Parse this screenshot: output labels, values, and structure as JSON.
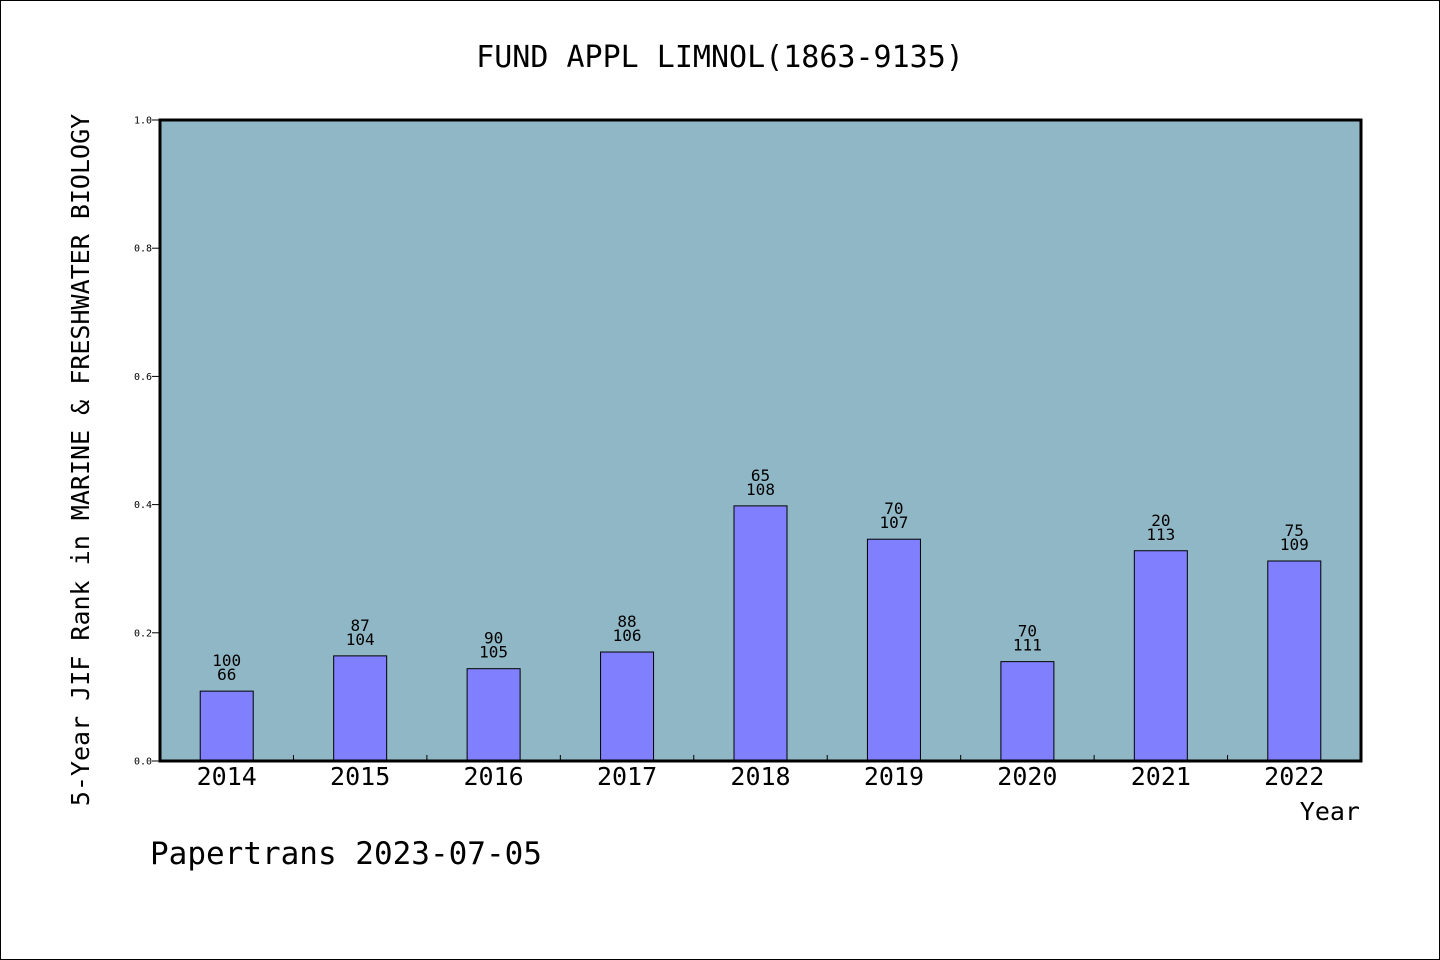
{
  "chart_data": {
    "type": "bar",
    "title": "FUND APPL LIMNOL(1863-9135)",
    "xlabel": "Year",
    "ylabel": "5-Year JIF Rank in MARINE & FRESHWATER BIOLOGY",
    "ylim": [
      0,
      1.0
    ],
    "yticks": [
      "0.0",
      "0.2",
      "0.4",
      "0.6",
      "0.8",
      "1.0"
    ],
    "categories": [
      "2014",
      "2015",
      "2016",
      "2017",
      "2018",
      "2019",
      "2020",
      "2021",
      "2022"
    ],
    "values": [
      0.109,
      0.164,
      0.144,
      0.17,
      0.398,
      0.346,
      0.155,
      0.328,
      0.312
    ],
    "rank_labels": [
      "66",
      "104",
      "105",
      "106",
      "108",
      "107",
      "111",
      "113",
      "109"
    ],
    "count_labels": [
      "100",
      "87",
      "90",
      "88",
      "65",
      "70",
      "70",
      "20",
      "75"
    ],
    "grid": false,
    "colors": {
      "plot_background": "#8fb7c5",
      "bar_fill": "#8080ff",
      "bar_stroke": "#000000"
    }
  },
  "footer": "Papertrans 2023-07-05"
}
